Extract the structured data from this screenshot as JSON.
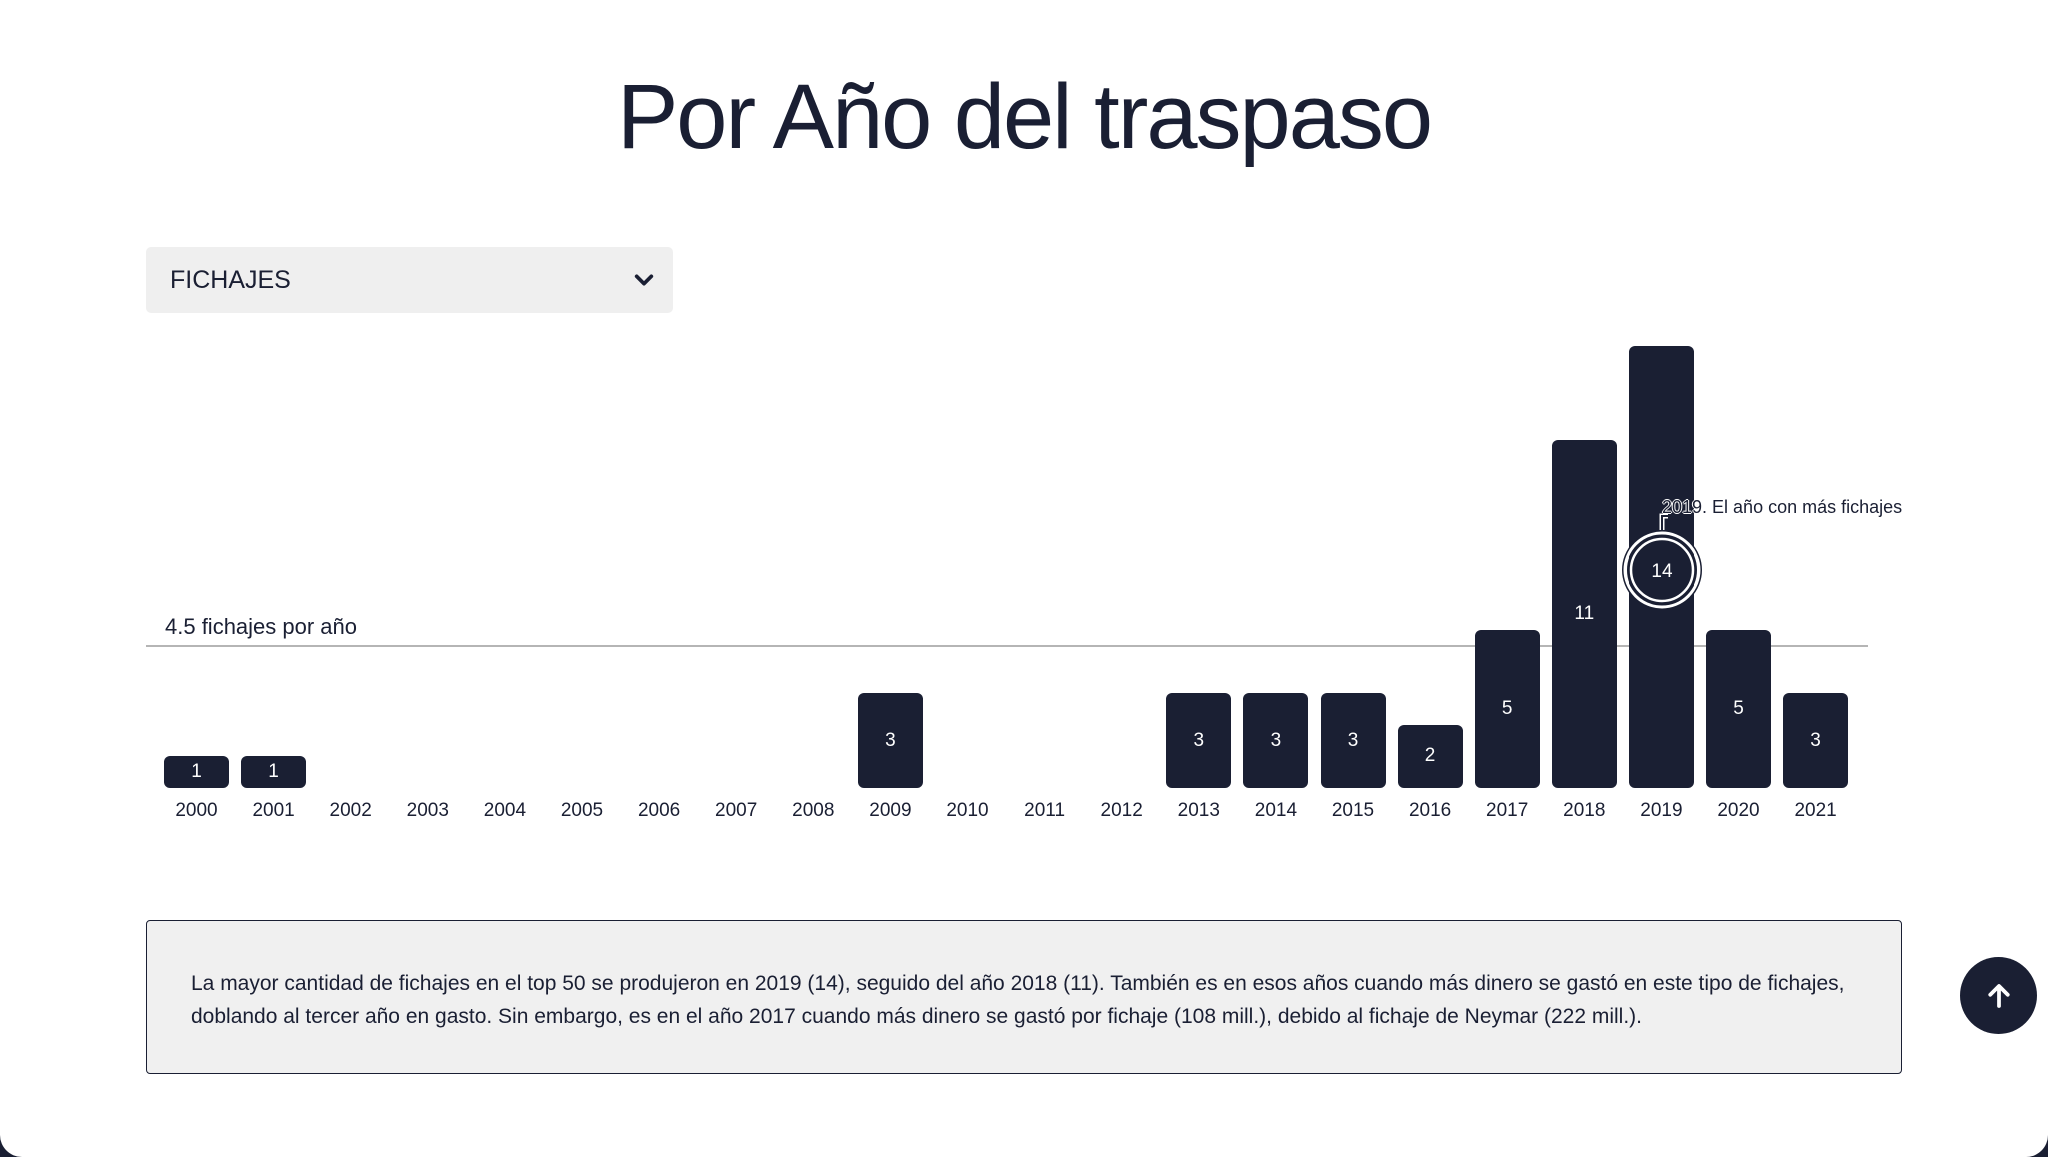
{
  "title": "Por Año del traspaso",
  "selector": {
    "selected": "FICHAJES",
    "icon": "chevron-down-icon"
  },
  "average": {
    "label": "4.5 fichajes por año",
    "value": 4.5
  },
  "annotation": {
    "text": "2019. El año con más fichajes",
    "year": "2019",
    "value": "14"
  },
  "bars": [
    {
      "year": "2000",
      "value": 1,
      "label": "1"
    },
    {
      "year": "2001",
      "value": 1,
      "label": "1"
    },
    {
      "year": "2002",
      "value": 0,
      "label": ""
    },
    {
      "year": "2003",
      "value": 0,
      "label": ""
    },
    {
      "year": "2004",
      "value": 0,
      "label": ""
    },
    {
      "year": "2005",
      "value": 0,
      "label": ""
    },
    {
      "year": "2006",
      "value": 0,
      "label": ""
    },
    {
      "year": "2007",
      "value": 0,
      "label": ""
    },
    {
      "year": "2008",
      "value": 0,
      "label": ""
    },
    {
      "year": "2009",
      "value": 3,
      "label": "3"
    },
    {
      "year": "2010",
      "value": 0,
      "label": ""
    },
    {
      "year": "2011",
      "value": 0,
      "label": ""
    },
    {
      "year": "2012",
      "value": 0,
      "label": ""
    },
    {
      "year": "2013",
      "value": 3,
      "label": "3"
    },
    {
      "year": "2014",
      "value": 3,
      "label": "3"
    },
    {
      "year": "2015",
      "value": 3,
      "label": "3"
    },
    {
      "year": "2016",
      "value": 2,
      "label": "2"
    },
    {
      "year": "2017",
      "value": 5,
      "label": "5"
    },
    {
      "year": "2018",
      "value": 11,
      "label": "11"
    },
    {
      "year": "2019",
      "value": 14,
      "label": ""
    },
    {
      "year": "2020",
      "value": 5,
      "label": "5"
    },
    {
      "year": "2021",
      "value": 3,
      "label": "3"
    }
  ],
  "description": "La mayor cantidad de fichajes en el top 50 se produjeron en 2019 (14), seguido del año 2018 (11). También es en esos años cuando más dinero se gastó en este tipo de fichajes, doblando al tercer año en gasto. Sin embargo, es en el año 2017 cuando más dinero se gastó por fichaje (108 mill.), debido al fichaje de Neymar (222 mill.).",
  "scroll_top": {
    "icon": "arrow-up-icon"
  },
  "colors": {
    "bar": "#1a1f33",
    "text": "#1a1f33",
    "panel": "#f0f0f0",
    "avg_line": "#b5b5b5"
  },
  "chart_data": {
    "type": "bar",
    "title": "Por Año del traspaso",
    "xlabel": "",
    "ylabel": "",
    "categories": [
      "2000",
      "2001",
      "2002",
      "2003",
      "2004",
      "2005",
      "2006",
      "2007",
      "2008",
      "2009",
      "2010",
      "2011",
      "2012",
      "2013",
      "2014",
      "2015",
      "2016",
      "2017",
      "2018",
      "2019",
      "2020",
      "2021"
    ],
    "values": [
      1,
      1,
      0,
      0,
      0,
      0,
      0,
      0,
      0,
      3,
      0,
      0,
      0,
      3,
      3,
      3,
      2,
      5,
      11,
      14,
      5,
      3
    ],
    "ylim": [
      0,
      14
    ],
    "grid": false,
    "legend": null,
    "reference_line": {
      "value": 4.5,
      "label": "4.5 fichajes por año"
    },
    "annotations": [
      {
        "x": "2019",
        "y": 14,
        "text": "2019. El año con más fichajes"
      }
    ],
    "data_labels": true,
    "selector_value": "FICHAJES"
  }
}
